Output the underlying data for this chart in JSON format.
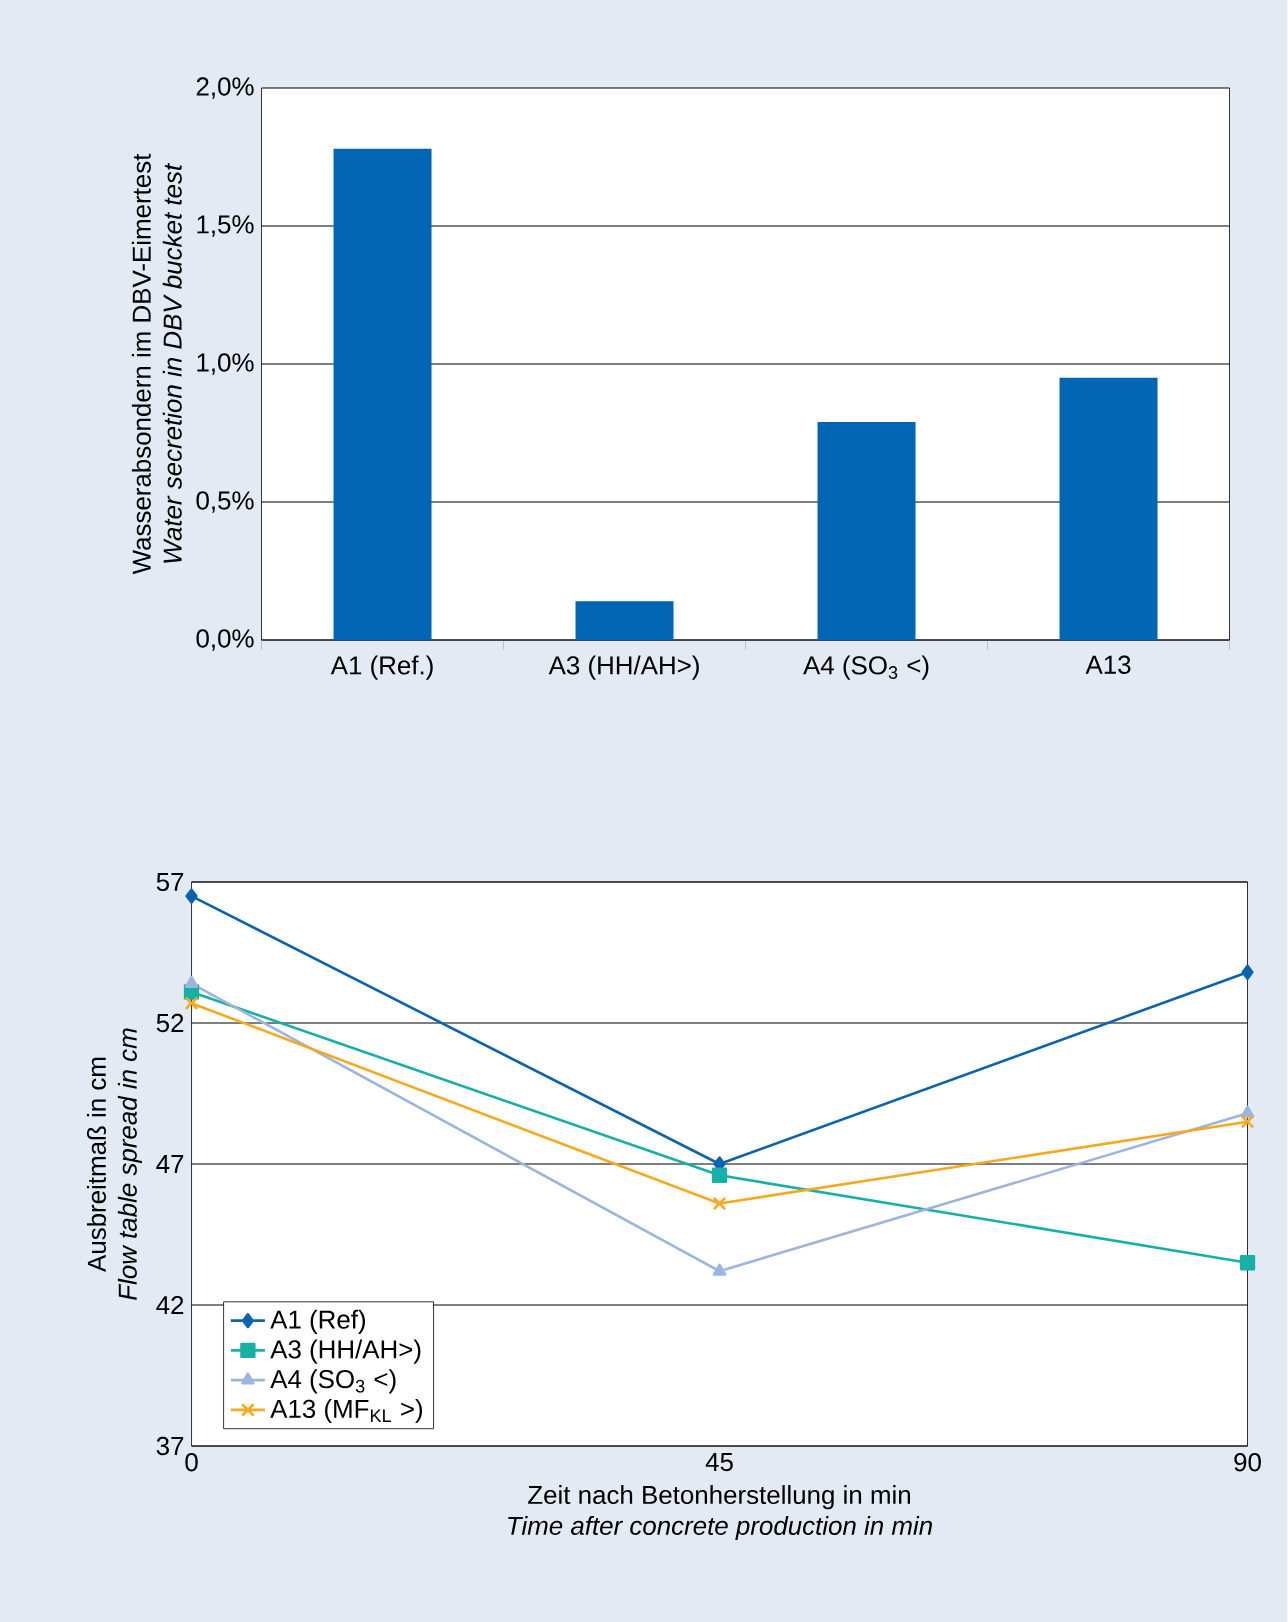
{
  "chart_data": [
    {
      "type": "bar",
      "ylabel": "Wasserabsondern im DBV-Eimertest\n*Water secretion in DBV bucket test*",
      "categories": [
        "A1 (Ref.)",
        "A3 (HH/AH>)",
        "A4 (SO$_{3}$ <)",
        "A13"
      ],
      "values": [
        1.78,
        0.14,
        0.79,
        0.95
      ],
      "color": "#0066b3",
      "ylim": [
        0,
        2
      ],
      "yticks": [
        {
          "value": 0,
          "label": "0,0%"
        },
        {
          "value": 0.5,
          "label": "0,5%"
        },
        {
          "value": 1,
          "label": "1,0%"
        },
        {
          "value": 1.5,
          "label": "1,5%"
        },
        {
          "value": 2,
          "label": "2,0%"
        }
      ],
      "grid": "y"
    },
    {
      "type": "line",
      "xlabel": "Zeit nach Betonherstellung in min\n*Time after concrete production in min*",
      "ylabel": "Ausbreitmaß in cm\n*Flow table spread in cm*",
      "x": [
        0,
        45,
        90
      ],
      "series": [
        {
          "name": "A1 (Ref)",
          "color": "#0b63b0",
          "marker": "diamond",
          "values": [
            56.5,
            47.0,
            53.8
          ]
        },
        {
          "name": "A3 (HH/AH>)",
          "color": "#17b0a7",
          "marker": "square",
          "values": [
            53.1,
            46.6,
            43.5
          ]
        },
        {
          "name": "A4 (SO$_{3}$ <)",
          "color": "#9db5de",
          "marker": "triangle",
          "values": [
            53.4,
            43.2,
            48.8
          ]
        },
        {
          "name": "A13 (MF$_{KL}$ >)",
          "color": "#f6a821",
          "marker": "cross",
          "values": [
            52.7,
            45.6,
            48.5
          ]
        }
      ],
      "xlim": [
        0,
        90
      ],
      "xticks": [
        0,
        45,
        90
      ],
      "ylim": [
        37,
        57
      ],
      "yticks": [
        37,
        42,
        47,
        52,
        57
      ],
      "grid": "y",
      "legend": "bottom left",
      "line_style": "solid"
    }
  ]
}
